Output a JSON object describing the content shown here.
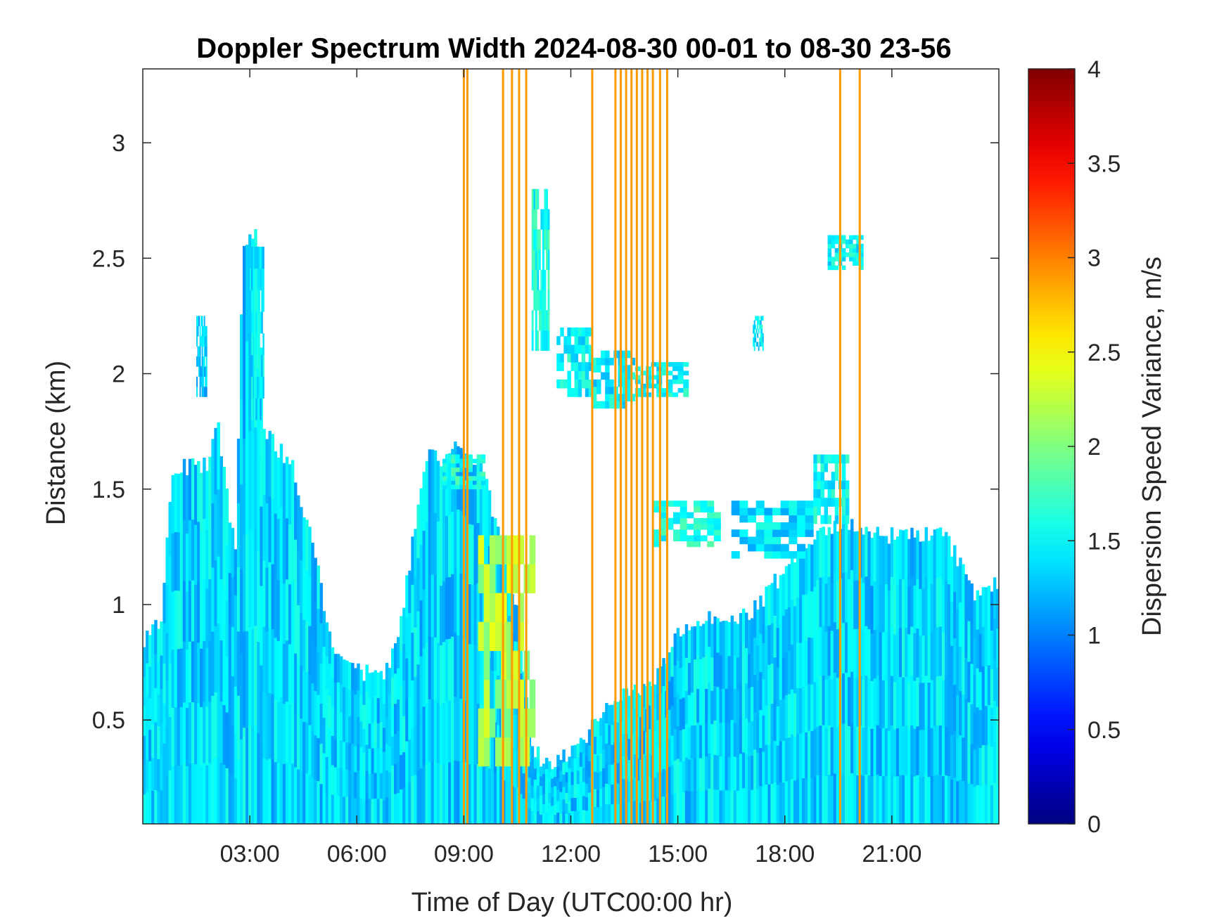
{
  "chart_data": {
    "type": "heatmap",
    "title": "Doppler Spectrum Width 2024-08-30 00-01 to 08-30 23-56",
    "xlabel": "Time of Day (UTC00:00 hr)",
    "ylabel": "Distance (km)",
    "xlim": [
      0.0,
      24.0
    ],
    "ylim": [
      0.05,
      3.32
    ],
    "x_ticks": [
      {
        "value": 3,
        "label": "03:00"
      },
      {
        "value": 6,
        "label": "06:00"
      },
      {
        "value": 9,
        "label": "09:00"
      },
      {
        "value": 12,
        "label": "12:00"
      },
      {
        "value": 15,
        "label": "15:00"
      },
      {
        "value": 18,
        "label": "18:00"
      },
      {
        "value": 21,
        "label": "21:00"
      }
    ],
    "y_ticks": [
      {
        "value": 0.5,
        "label": "0.5"
      },
      {
        "value": 1,
        "label": "1"
      },
      {
        "value": 1.5,
        "label": "1.5"
      },
      {
        "value": 2,
        "label": "2"
      },
      {
        "value": 2.5,
        "label": "2.5"
      },
      {
        "value": 3,
        "label": "3"
      }
    ],
    "colorbar": {
      "label": "Dispersion Speed Variance, m/s",
      "range": [
        0,
        4
      ],
      "colormap": "jet",
      "ticks": [
        {
          "value": 0,
          "label": "0"
        },
        {
          "value": 0.5,
          "label": "0.5"
        },
        {
          "value": 1,
          "label": "1"
        },
        {
          "value": 1.5,
          "label": "1.5"
        },
        {
          "value": 2,
          "label": "2"
        },
        {
          "value": 2.5,
          "label": "2.5"
        },
        {
          "value": 3,
          "label": "3"
        },
        {
          "value": 3.5,
          "label": "3.5"
        },
        {
          "value": 4,
          "label": "4"
        }
      ]
    },
    "typical_value": 1.35,
    "echo_top_km": [
      [
        0.0,
        0.85
      ],
      [
        0.5,
        0.92
      ],
      [
        0.8,
        1.55
      ],
      [
        1.0,
        1.6
      ],
      [
        1.8,
        1.6
      ],
      [
        2.1,
        1.8
      ],
      [
        2.6,
        1.2
      ],
      [
        2.8,
        2.55
      ],
      [
        3.2,
        2.6
      ],
      [
        3.4,
        1.75
      ],
      [
        4.2,
        1.6
      ],
      [
        4.8,
        1.25
      ],
      [
        5.3,
        0.8
      ],
      [
        6.2,
        0.7
      ],
      [
        6.8,
        0.7
      ],
      [
        7.2,
        0.9
      ],
      [
        7.6,
        1.3
      ],
      [
        8.0,
        1.7
      ],
      [
        8.4,
        1.6
      ],
      [
        8.8,
        1.7
      ],
      [
        9.5,
        1.6
      ],
      [
        10.0,
        1.3
      ],
      [
        10.5,
        1.0
      ],
      [
        10.9,
        0.4
      ],
      [
        11.3,
        0.3
      ],
      [
        12.0,
        0.35
      ],
      [
        13.0,
        0.55
      ],
      [
        14.5,
        0.7
      ],
      [
        15.0,
        0.88
      ],
      [
        16.0,
        0.95
      ],
      [
        17.0,
        0.95
      ],
      [
        18.0,
        1.15
      ],
      [
        19.0,
        1.3
      ],
      [
        19.6,
        1.35
      ],
      [
        20.5,
        1.3
      ],
      [
        21.5,
        1.3
      ],
      [
        22.5,
        1.3
      ],
      [
        23.3,
        1.05
      ],
      [
        24.0,
        1.1
      ]
    ],
    "cloud_patches": [
      {
        "x": [
          3.0,
          3.4
        ],
        "y": [
          1.8,
          2.55
        ],
        "value": 1.4
      },
      {
        "x": [
          1.5,
          1.8
        ],
        "y": [
          1.9,
          2.25
        ],
        "value": 1.3
      },
      {
        "x": [
          10.9,
          11.4
        ],
        "y": [
          2.1,
          2.8
        ],
        "value": 1.6
      },
      {
        "x": [
          11.6,
          12.6
        ],
        "y": [
          1.9,
          2.2
        ],
        "value": 1.5
      },
      {
        "x": [
          12.6,
          13.8
        ],
        "y": [
          1.85,
          2.1
        ],
        "value": 1.45
      },
      {
        "x": [
          13.8,
          15.3
        ],
        "y": [
          1.9,
          2.05
        ],
        "value": 1.5
      },
      {
        "x": [
          14.3,
          16.2
        ],
        "y": [
          1.25,
          1.45
        ],
        "value": 1.6
      },
      {
        "x": [
          16.5,
          18.8
        ],
        "y": [
          1.2,
          1.45
        ],
        "value": 1.4
      },
      {
        "x": [
          17.1,
          17.4
        ],
        "y": [
          2.1,
          2.25
        ],
        "value": 1.4
      },
      {
        "x": [
          19.2,
          20.2
        ],
        "y": [
          2.45,
          2.6
        ],
        "value": 1.5
      },
      {
        "x": [
          18.8,
          19.8
        ],
        "y": [
          1.35,
          1.65
        ],
        "value": 1.5
      },
      {
        "x": [
          8.4,
          9.6
        ],
        "y": [
          1.5,
          1.65
        ],
        "value": 1.6
      },
      {
        "x": [
          9.4,
          11.0
        ],
        "y": [
          0.3,
          1.3
        ],
        "value": 2.2
      }
    ],
    "high_variance_columns": [
      {
        "x": 9.0,
        "value": 2.9
      },
      {
        "x": 9.1,
        "value": 2.9
      },
      {
        "x": 10.1,
        "value": 2.9
      },
      {
        "x": 10.35,
        "value": 2.9
      },
      {
        "x": 10.55,
        "value": 2.9
      },
      {
        "x": 10.75,
        "value": 2.9
      },
      {
        "x": 12.6,
        "value": 2.9
      },
      {
        "x": 13.25,
        "value": 2.9
      },
      {
        "x": 13.4,
        "value": 2.9
      },
      {
        "x": 13.55,
        "value": 2.9
      },
      {
        "x": 13.7,
        "value": 2.9
      },
      {
        "x": 13.85,
        "value": 2.9
      },
      {
        "x": 14.0,
        "value": 2.9
      },
      {
        "x": 14.15,
        "value": 2.9
      },
      {
        "x": 14.3,
        "value": 2.9
      },
      {
        "x": 14.5,
        "value": 2.9
      },
      {
        "x": 14.7,
        "value": 2.9
      },
      {
        "x": 19.55,
        "value": 2.9
      },
      {
        "x": 20.1,
        "value": 2.9
      }
    ],
    "grid": false,
    "legend": "colorbar-right"
  }
}
